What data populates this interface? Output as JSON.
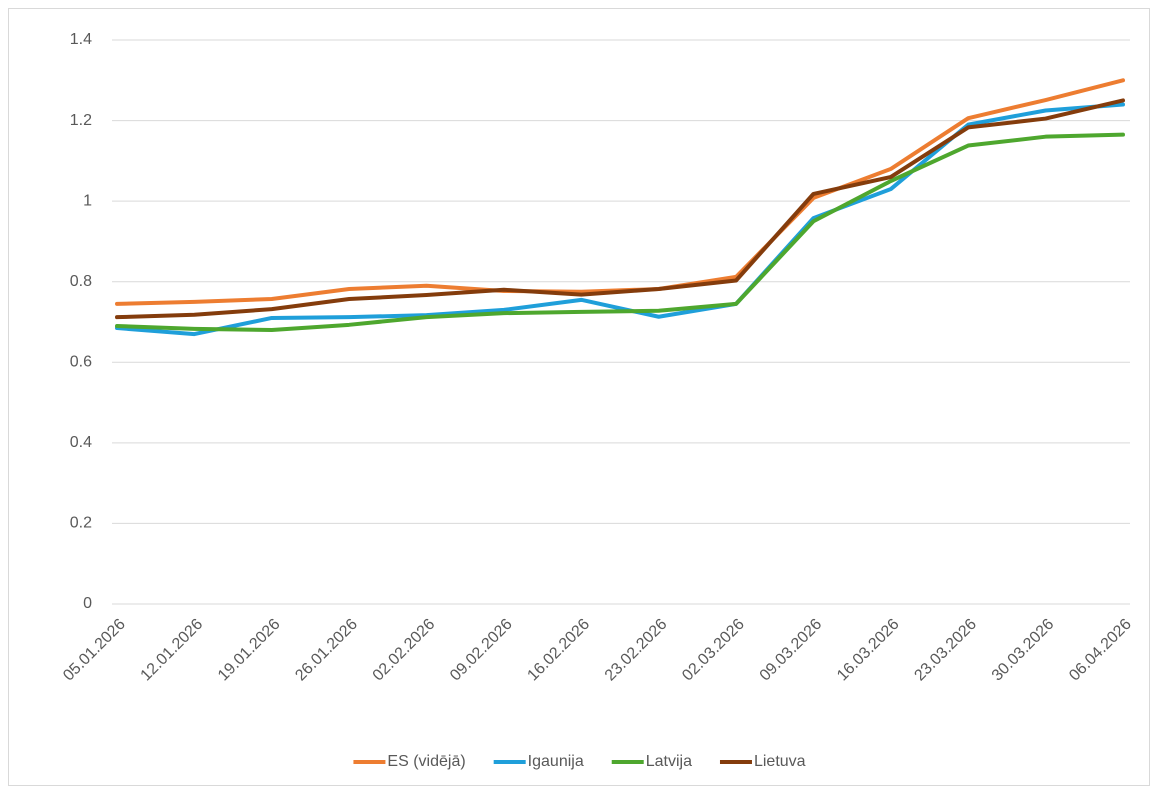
{
  "chart_data": {
    "type": "line",
    "categories": [
      "05.01.2026",
      "12.01.2026",
      "19.01.2026",
      "26.01.2026",
      "02.02.2026",
      "09.02.2026",
      "16.02.2026",
      "23.02.2026",
      "02.03.2026",
      "09.03.2026",
      "16.03.2026",
      "23.03.2026",
      "30.03.2026",
      "06.04.2026"
    ],
    "series": [
      {
        "name": "ES (vidējā)",
        "color": "#ed7d31",
        "values": [
          0.745,
          0.75,
          0.757,
          0.782,
          0.79,
          0.777,
          0.775,
          0.782,
          0.812,
          1.008,
          1.08,
          1.206,
          1.251,
          1.3
        ]
      },
      {
        "name": "Igaunija",
        "color": "#1f9fda",
        "values": [
          0.685,
          0.67,
          0.71,
          0.712,
          0.717,
          0.73,
          0.755,
          0.713,
          0.745,
          0.958,
          1.03,
          1.19,
          1.225,
          1.24
        ]
      },
      {
        "name": "Latvija",
        "color": "#4ea72e",
        "values": [
          0.69,
          0.683,
          0.68,
          0.693,
          0.712,
          0.722,
          0.725,
          0.728,
          0.745,
          0.95,
          1.05,
          1.138,
          1.16,
          1.165
        ]
      },
      {
        "name": "Lietuva",
        "color": "#843c0c",
        "values": [
          0.712,
          0.718,
          0.732,
          0.757,
          0.767,
          0.78,
          0.768,
          0.782,
          0.803,
          1.018,
          1.06,
          1.183,
          1.205,
          1.25
        ]
      }
    ],
    "ylim": [
      0,
      1.4
    ],
    "yticks": [
      0,
      0.2,
      0.4,
      0.6,
      0.8,
      1,
      1.2,
      1.4
    ],
    "grid": true,
    "legend": "bottom"
  }
}
